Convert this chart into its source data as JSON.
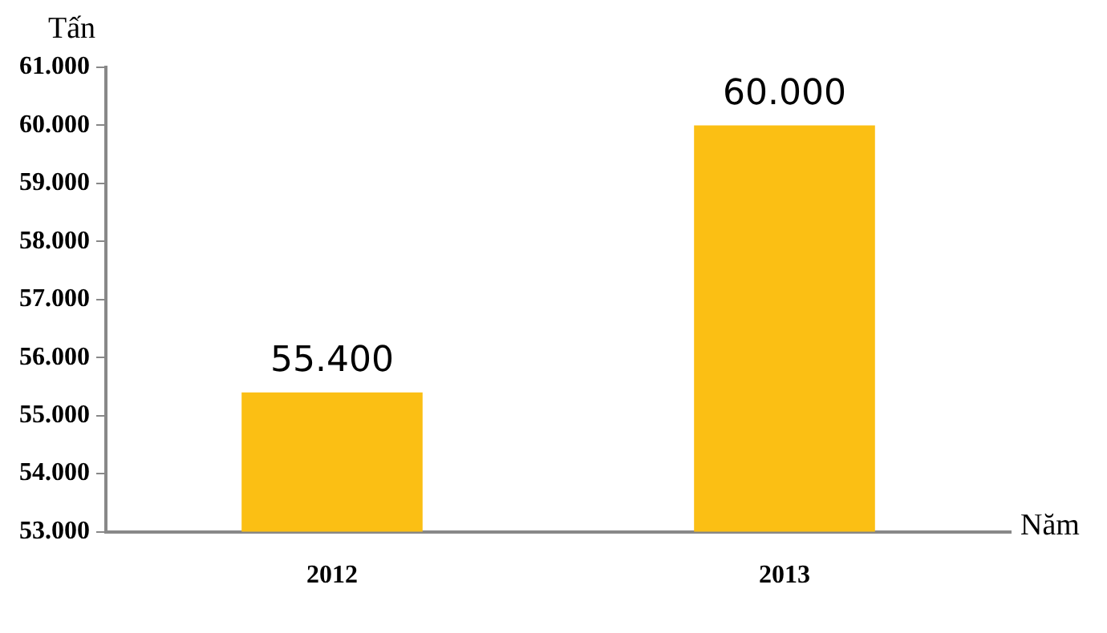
{
  "chart_data": {
    "type": "bar",
    "ylabel": "Tấn",
    "xlabel": "Năm",
    "categories": [
      "2012",
      "2013"
    ],
    "values": [
      55400,
      60000
    ],
    "value_labels": [
      "55.400",
      "60.000"
    ],
    "color": "#fbbf14",
    "ylim": [
      53000,
      61000
    ],
    "yticks": [
      {
        "value": 53000,
        "label": "53.000"
      },
      {
        "value": 54000,
        "label": "54.000"
      },
      {
        "value": 55000,
        "label": "55.000"
      },
      {
        "value": 56000,
        "label": "56.000"
      },
      {
        "value": 57000,
        "label": "57.000"
      },
      {
        "value": 58000,
        "label": "58.000"
      },
      {
        "value": 59000,
        "label": "59.000"
      },
      {
        "value": 60000,
        "label": "60.000"
      },
      {
        "value": 61000,
        "label": "61.000"
      }
    ],
    "grid": false,
    "legend": false
  }
}
